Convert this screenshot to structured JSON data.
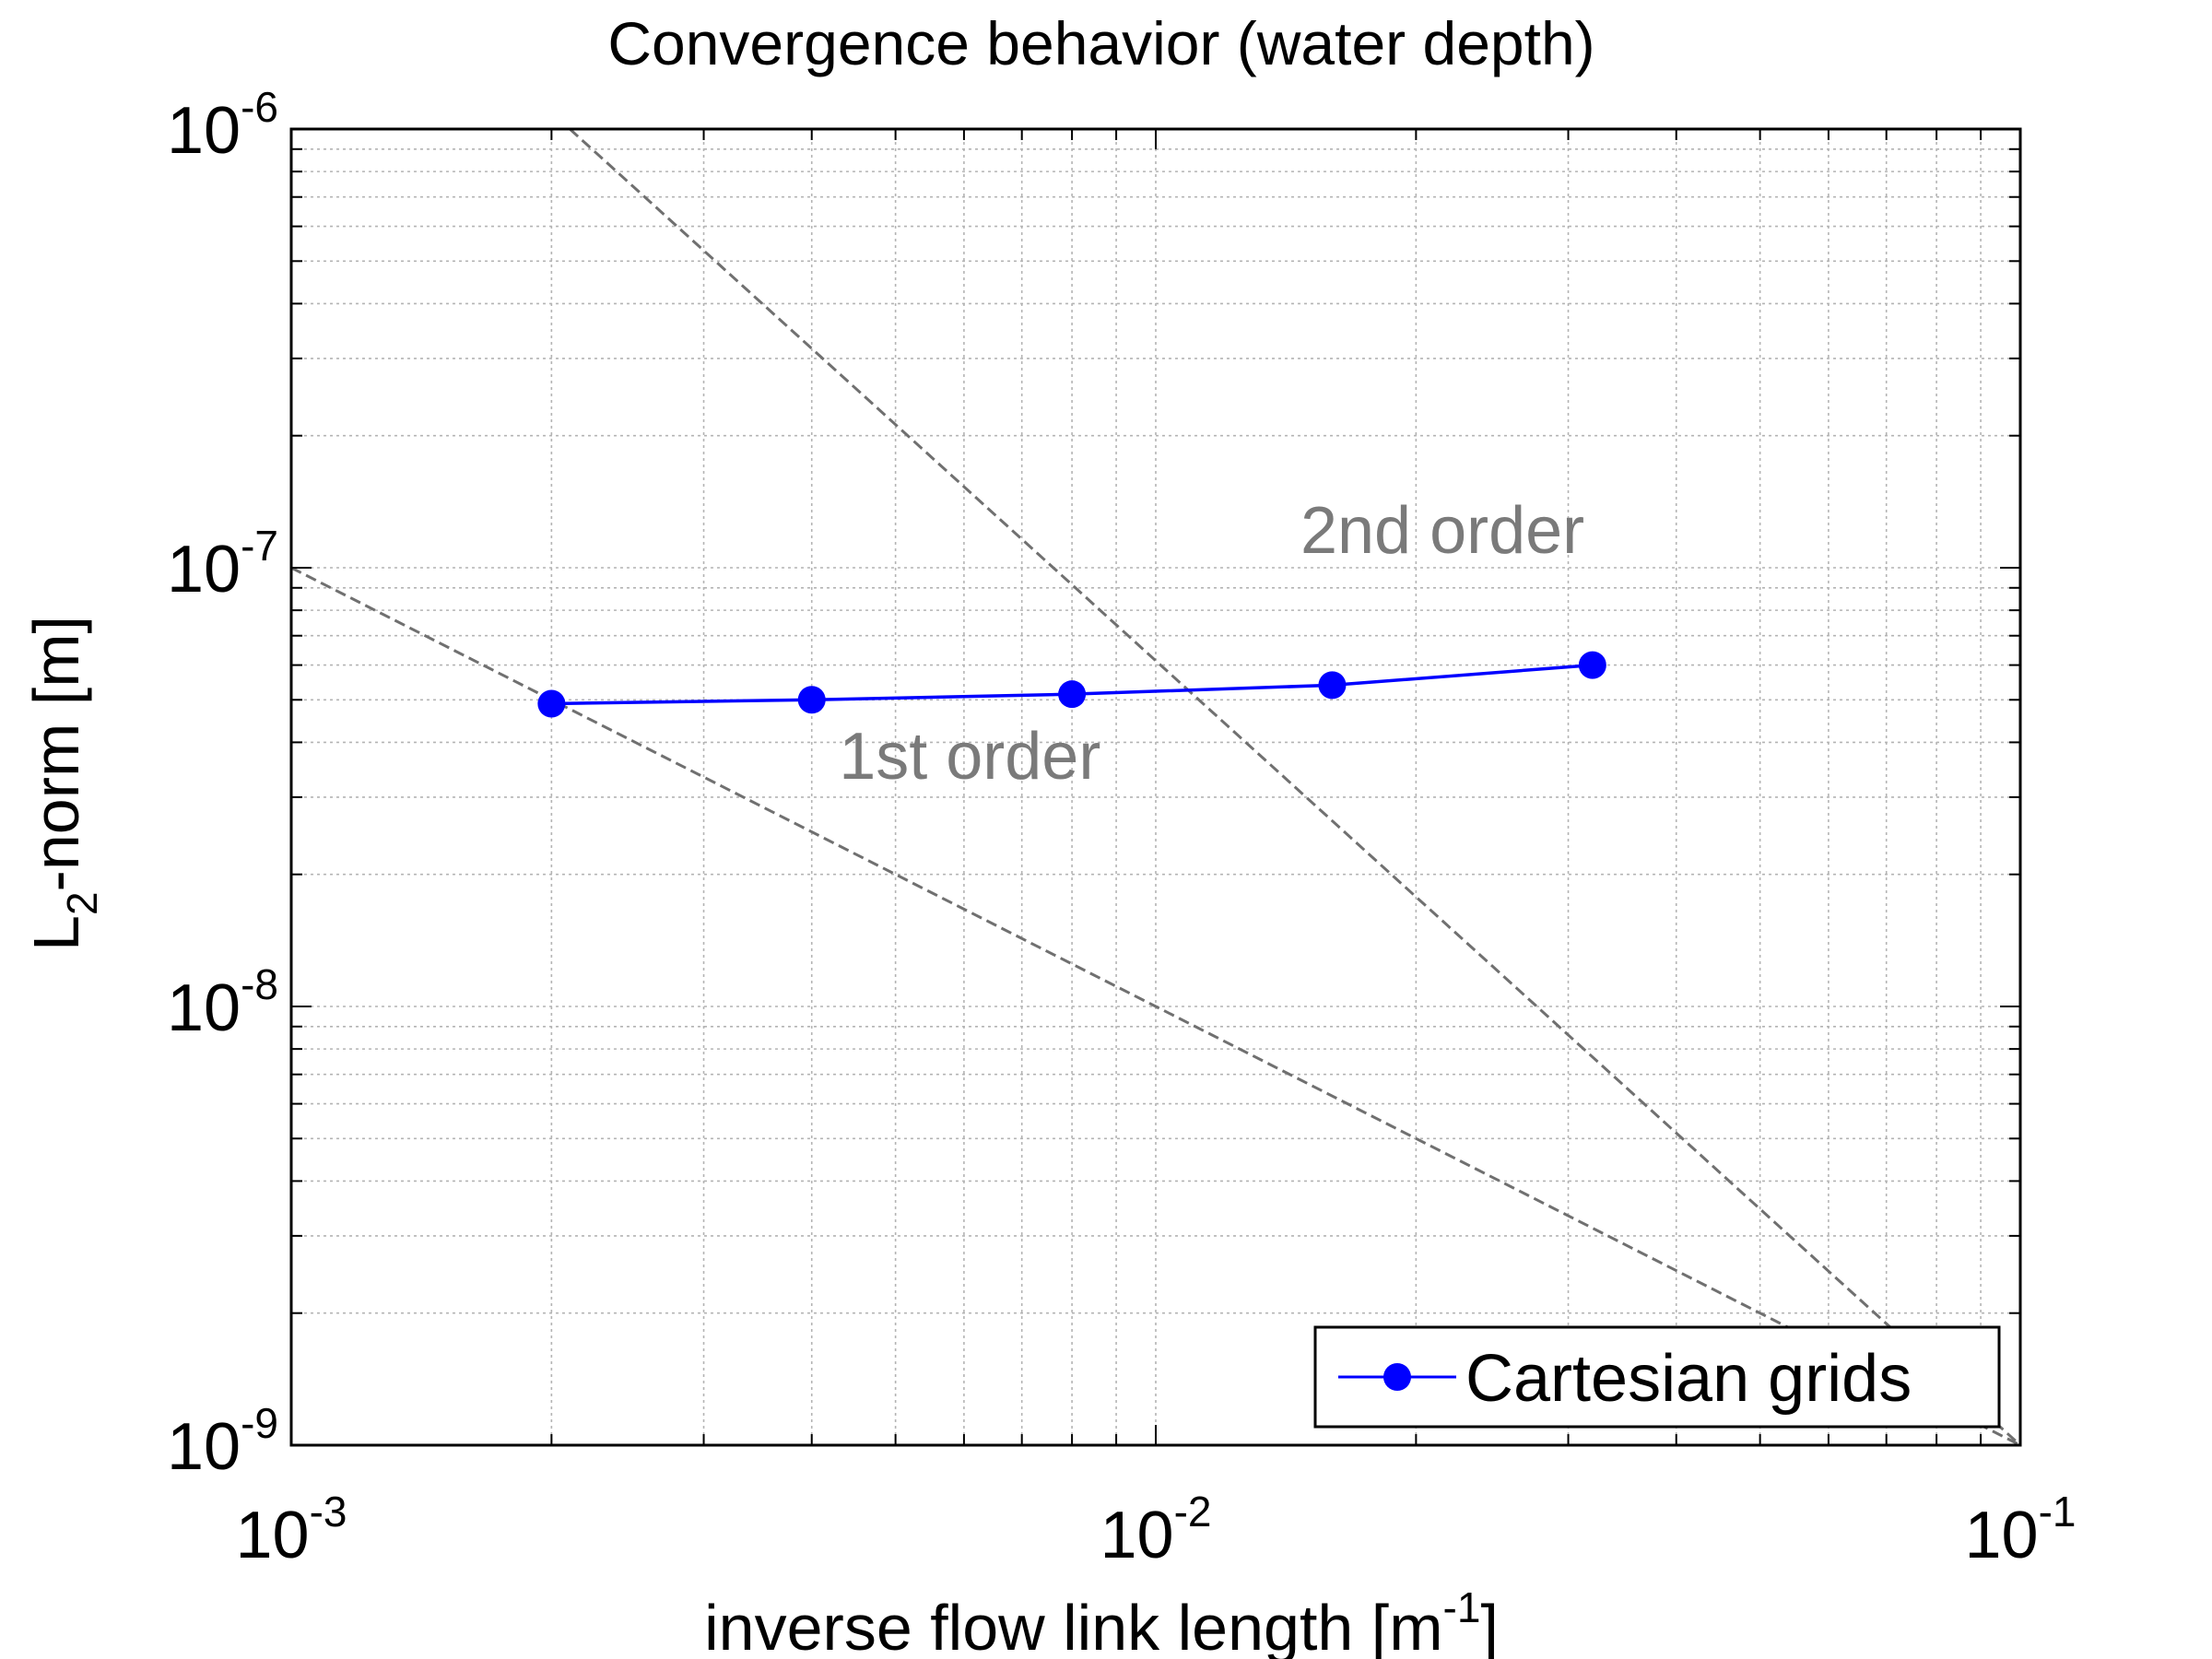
{
  "chart_data": {
    "type": "line",
    "title": "Convergence behavior (water depth)",
    "xlabel": {
      "main": "inverse flow link length [m",
      "sup": "-1",
      "suffix": "]"
    },
    "ylabel": {
      "main": "L",
      "sub": "2",
      "suffix": "-norm [m]"
    },
    "xscale": "log",
    "yscale": "log",
    "xlim": [
      0.001,
      0.1
    ],
    "ylim": [
      1e-09,
      1e-06
    ],
    "grid": true,
    "legend_position": "bottom-right",
    "x_ticks": [
      {
        "value": 0.001,
        "base": "10",
        "exp": "-3"
      },
      {
        "value": 0.01,
        "base": "10",
        "exp": "-2"
      },
      {
        "value": 0.1,
        "base": "10",
        "exp": "-1"
      }
    ],
    "y_ticks": [
      {
        "value": 1e-09,
        "base": "10",
        "exp": "-9"
      },
      {
        "value": 1e-08,
        "base": "10",
        "exp": "-8"
      },
      {
        "value": 1e-07,
        "base": "10",
        "exp": "-7"
      },
      {
        "value": 1e-06,
        "base": "10",
        "exp": "-6"
      }
    ],
    "series": [
      {
        "name": "Cartesian grids",
        "color": "#0000ff",
        "marker": "circle",
        "x": [
          0.002,
          0.004,
          0.008,
          0.016,
          0.032
        ],
        "y": [
          4.9e-08,
          5e-08,
          5.15e-08,
          5.4e-08,
          6e-08
        ]
      }
    ],
    "reference_lines": [
      {
        "label": "1st order",
        "color": "#707070",
        "style": "dashed",
        "x": [
          0.001,
          0.1
        ],
        "y": [
          1e-07,
          1e-09
        ],
        "label_x": 0.0043,
        "label_y": 3.3e-08
      },
      {
        "label": "2nd order",
        "color": "#707070",
        "style": "dashed",
        "x": [
          0.0021,
          0.1
        ],
        "y": [
          1e-06,
          1e-09
        ],
        "label_x": 0.0147,
        "label_y": 1.08e-07
      }
    ]
  }
}
